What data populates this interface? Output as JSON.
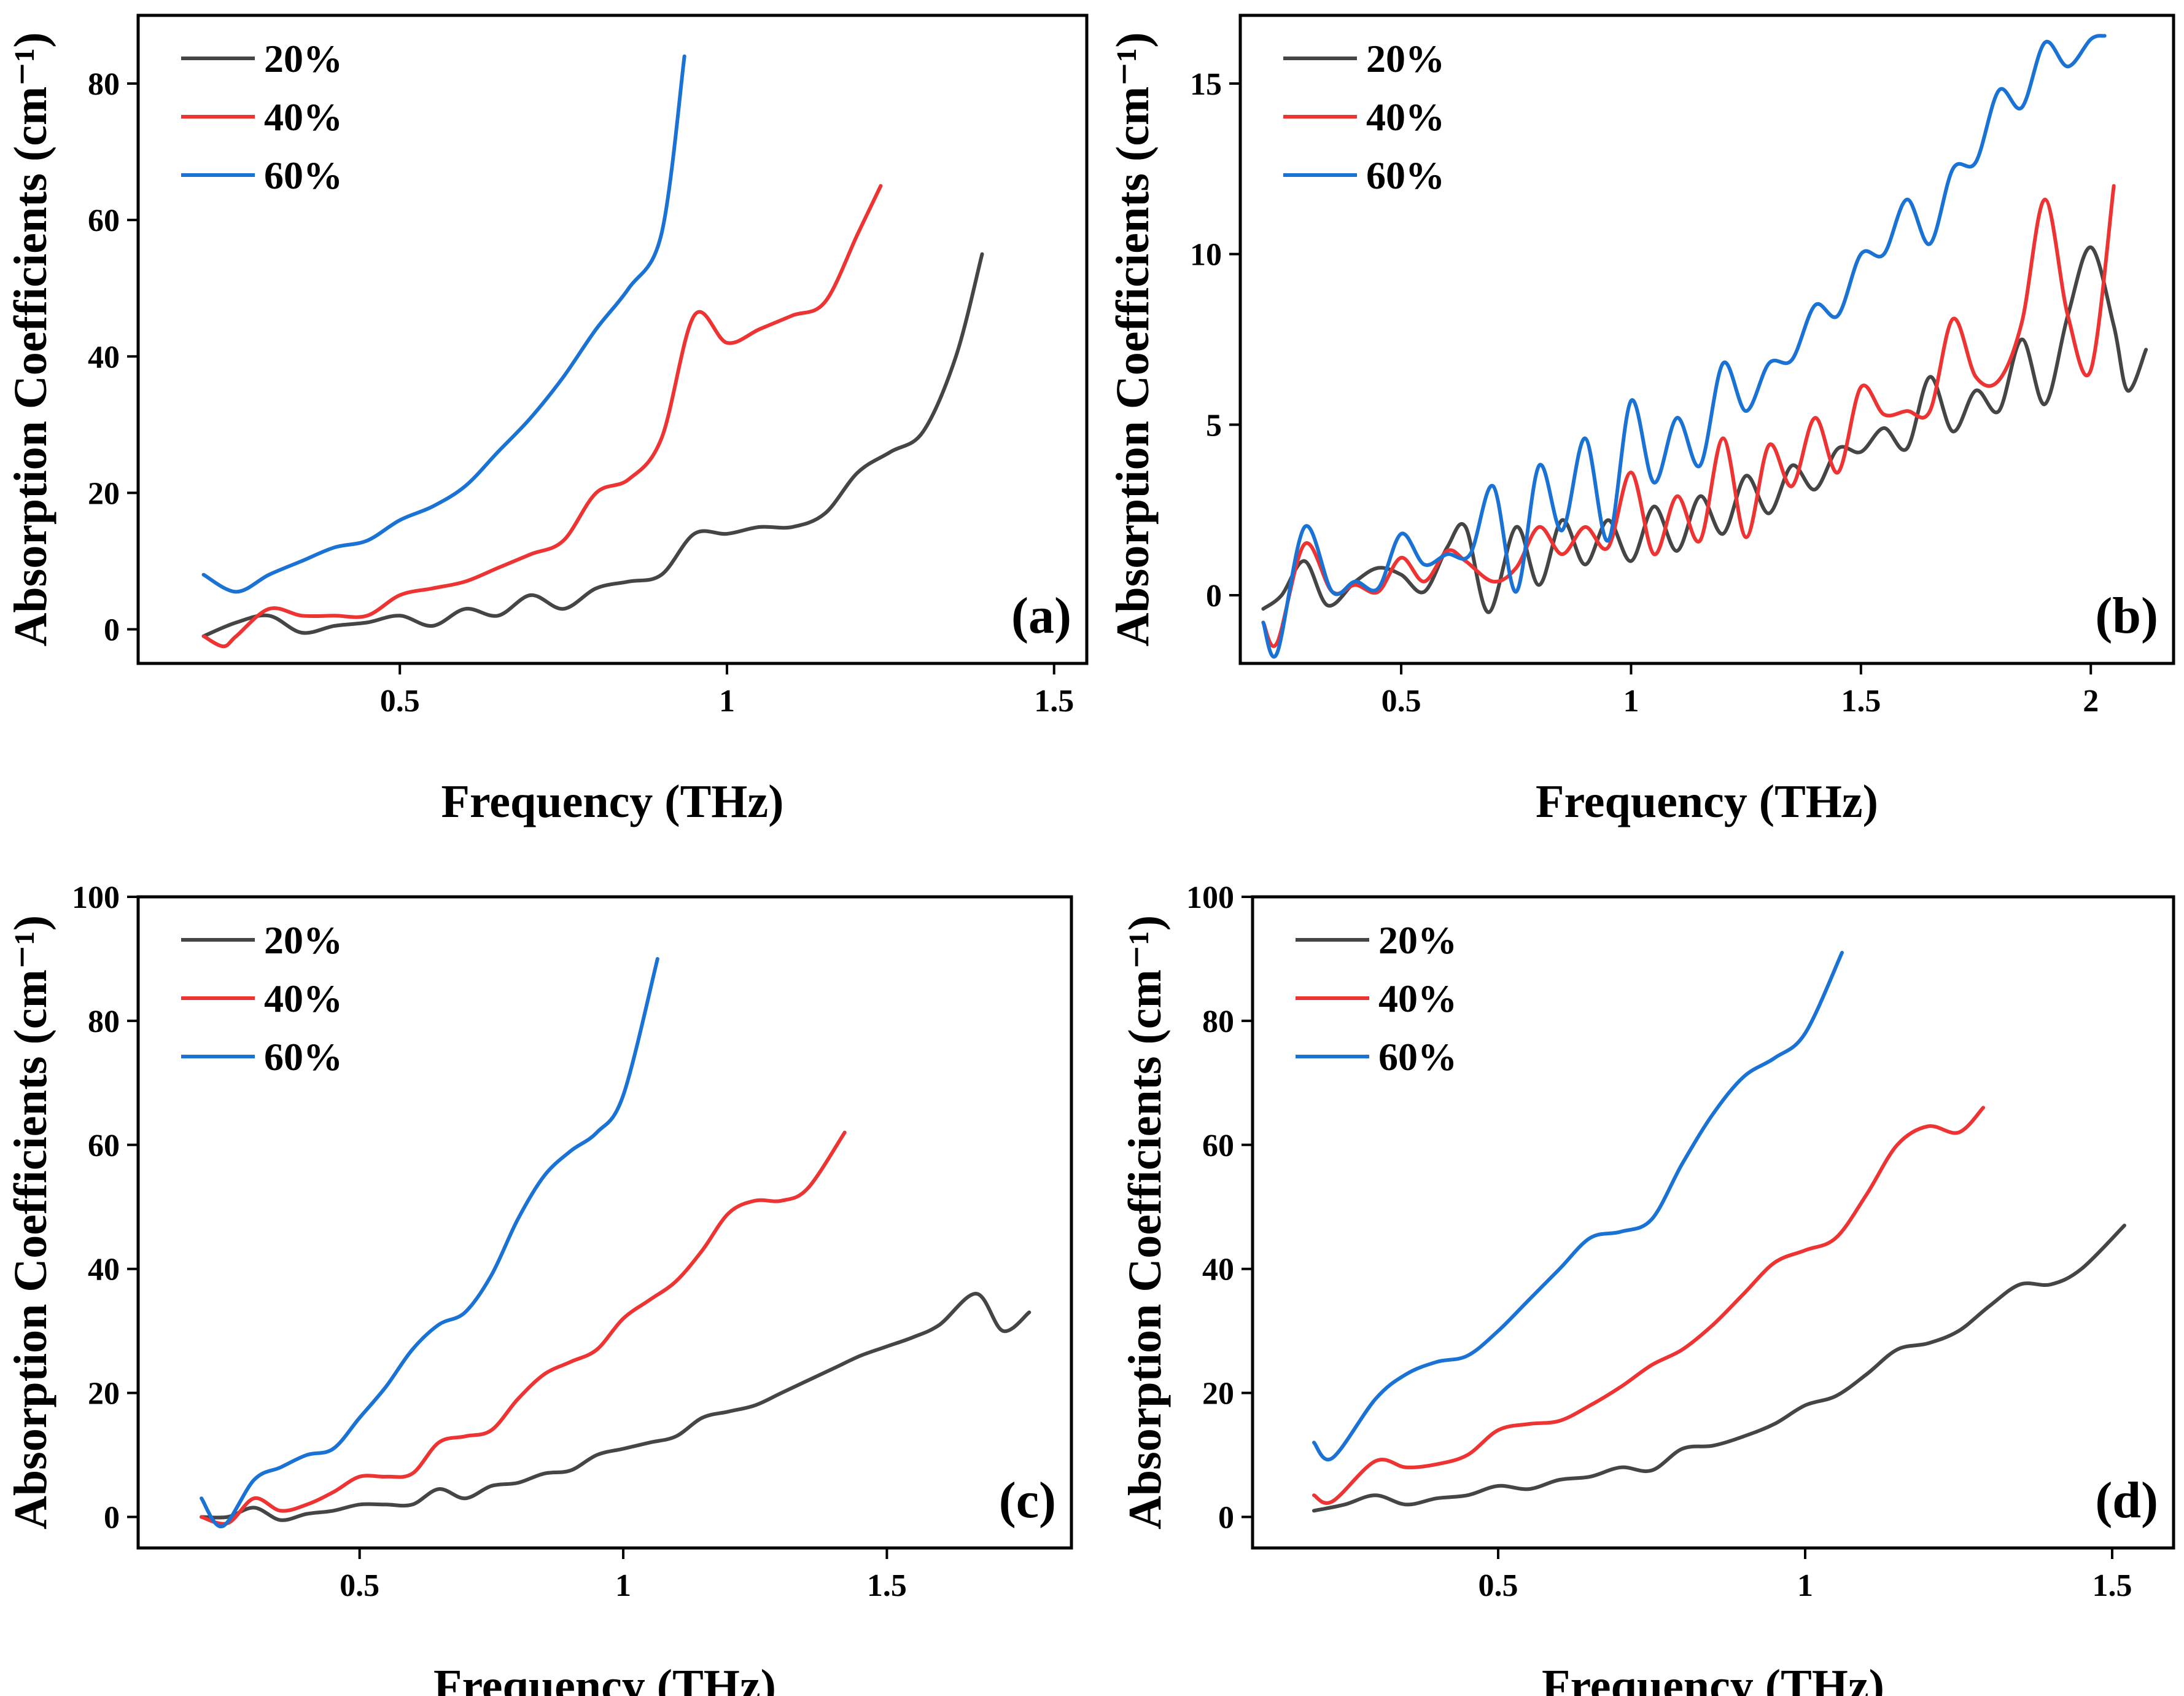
{
  "chart_data": [
    {
      "type": "line",
      "panel_label": "(a)",
      "xlabel": "Frequency (THz)",
      "ylabel": "Absorption Coefficients (cm⁻¹)",
      "xlim": [
        0.1,
        1.55
      ],
      "ylim": [
        -5,
        90
      ],
      "xticks": [
        0.5,
        1,
        1.5
      ],
      "xtick_labels": [
        "0.5",
        "1",
        "1.5"
      ],
      "yticks": [
        0,
        20,
        40,
        60,
        80
      ],
      "ytick_labels": [
        "0",
        "20",
        "40",
        "60",
        "80"
      ],
      "legend_position": "top-left",
      "series": [
        {
          "name": "20%",
          "color": "#454545",
          "x": [
            0.2,
            0.25,
            0.3,
            0.35,
            0.4,
            0.45,
            0.5,
            0.55,
            0.6,
            0.65,
            0.7,
            0.75,
            0.8,
            0.85,
            0.9,
            0.95,
            1.0,
            1.05,
            1.1,
            1.15,
            1.2,
            1.25,
            1.3,
            1.35,
            1.39
          ],
          "y": [
            -1,
            1,
            2,
            -0.5,
            0.5,
            1,
            2,
            0.5,
            3,
            2,
            5,
            3,
            6,
            7,
            8,
            14,
            14,
            15,
            15,
            17,
            23,
            26,
            29,
            40,
            55
          ]
        },
        {
          "name": "40%",
          "color": "#ee3333",
          "x": [
            0.2,
            0.23,
            0.25,
            0.3,
            0.35,
            0.4,
            0.45,
            0.5,
            0.55,
            0.6,
            0.65,
            0.7,
            0.75,
            0.8,
            0.85,
            0.9,
            0.95,
            1.0,
            1.05,
            1.1,
            1.15,
            1.2,
            1.235
          ],
          "y": [
            -1,
            -2.5,
            -1,
            3,
            2,
            2,
            2,
            5,
            6,
            7,
            9,
            11,
            13,
            20,
            22,
            28,
            46,
            42,
            44,
            46,
            48,
            58,
            65
          ]
        },
        {
          "name": "60%",
          "color": "#1a72d4",
          "x": [
            0.2,
            0.25,
            0.3,
            0.35,
            0.4,
            0.45,
            0.5,
            0.55,
            0.6,
            0.65,
            0.7,
            0.75,
            0.8,
            0.85,
            0.9,
            0.935
          ],
          "y": [
            8,
            5.5,
            8,
            10,
            12,
            13,
            16,
            18,
            21,
            26,
            31,
            37,
            44,
            50,
            58,
            84
          ]
        }
      ]
    },
    {
      "type": "line",
      "panel_label": "(b)",
      "xlabel": "Frequency (THz)",
      "ylabel": "Absorption Coefficients (cm⁻¹)",
      "xlim": [
        0.15,
        2.18
      ],
      "ylim": [
        -2,
        17
      ],
      "xticks": [
        0.5,
        1,
        1.5,
        2
      ],
      "xtick_labels": [
        "0.5",
        "1",
        "1.5",
        "2"
      ],
      "yticks": [
        0,
        5,
        10,
        15
      ],
      "ytick_labels": [
        "0",
        "5",
        "10",
        "15"
      ],
      "legend_position": "top-left",
      "series": [
        {
          "name": "20%",
          "color": "#454545",
          "x": [
            0.2,
            0.24,
            0.29,
            0.34,
            0.4,
            0.45,
            0.5,
            0.55,
            0.6,
            0.64,
            0.69,
            0.75,
            0.8,
            0.85,
            0.9,
            0.95,
            1.0,
            1.05,
            1.1,
            1.15,
            1.2,
            1.25,
            1.3,
            1.35,
            1.4,
            1.45,
            1.5,
            1.55,
            1.6,
            1.65,
            1.7,
            1.75,
            1.8,
            1.85,
            1.9,
            1.95,
            2.0,
            2.05,
            2.08,
            2.12
          ],
          "y": [
            -0.4,
            0,
            1,
            -0.3,
            0.4,
            0.8,
            0.6,
            0.1,
            1.4,
            2,
            -0.5,
            2,
            0.3,
            2.2,
            0.9,
            2.2,
            1,
            2.6,
            1.3,
            2.9,
            1.8,
            3.5,
            2.4,
            3.8,
            3.1,
            4.3,
            4.2,
            4.9,
            4.3,
            6.4,
            4.8,
            6,
            5.4,
            7.5,
            5.6,
            8.2,
            10.2,
            7.9,
            6,
            7.2
          ]
        },
        {
          "name": "40%",
          "color": "#ee3333",
          "x": [
            0.2,
            0.23,
            0.29,
            0.35,
            0.4,
            0.45,
            0.5,
            0.55,
            0.6,
            0.64,
            0.7,
            0.75,
            0.8,
            0.85,
            0.9,
            0.95,
            1.0,
            1.05,
            1.1,
            1.15,
            1.2,
            1.25,
            1.3,
            1.35,
            1.4,
            1.45,
            1.5,
            1.55,
            1.6,
            1.65,
            1.7,
            1.75,
            1.8,
            1.85,
            1.9,
            1.95,
            2.0,
            2.05
          ],
          "y": [
            -0.8,
            -1.4,
            1.5,
            0.1,
            0.3,
            0.1,
            1.1,
            0.4,
            1.3,
            1,
            0.4,
            0.8,
            2,
            1.2,
            2,
            1.4,
            3.6,
            1.2,
            2.9,
            1.6,
            4.6,
            1.7,
            4.4,
            3.2,
            5.2,
            3.6,
            6.1,
            5.3,
            5.4,
            5.4,
            8.1,
            6.4,
            6.3,
            8,
            11.6,
            8.2,
            6.6,
            12
          ]
        },
        {
          "name": "60%",
          "color": "#1a72d4",
          "x": [
            0.2,
            0.23,
            0.29,
            0.35,
            0.4,
            0.45,
            0.5,
            0.55,
            0.6,
            0.65,
            0.7,
            0.75,
            0.8,
            0.85,
            0.9,
            0.95,
            1.0,
            1.05,
            1.1,
            1.15,
            1.2,
            1.25,
            1.3,
            1.35,
            1.4,
            1.45,
            1.5,
            1.55,
            1.6,
            1.65,
            1.7,
            1.75,
            1.8,
            1.85,
            1.9,
            1.95,
            2.0,
            2.03
          ],
          "y": [
            -0.8,
            -1.7,
            2,
            0.1,
            0.4,
            0.2,
            1.8,
            0.9,
            1.2,
            1.2,
            3.2,
            0.1,
            3.8,
            1.9,
            4.6,
            1.6,
            5.7,
            3.3,
            5.2,
            3.8,
            6.8,
            5.4,
            6.8,
            6.9,
            8.5,
            8.2,
            10,
            10,
            11.6,
            10.3,
            12.5,
            12.7,
            14.8,
            14.3,
            16.2,
            15.5,
            16.3,
            16.4
          ]
        }
      ]
    },
    {
      "type": "line",
      "panel_label": "(c)",
      "xlabel": "Frequency (THz)",
      "ylabel": "Absorption Coefficients (cm⁻¹)",
      "xlim": [
        0.08,
        1.85
      ],
      "ylim": [
        -5,
        100
      ],
      "xticks": [
        0.5,
        1,
        1.5
      ],
      "xtick_labels": [
        "0.5",
        "1",
        "1.5"
      ],
      "yticks": [
        0,
        20,
        40,
        60,
        80,
        100
      ],
      "ytick_labels": [
        "0",
        "20",
        "40",
        "60",
        "80",
        "100"
      ],
      "legend_position": "top-left",
      "series": [
        {
          "name": "20%",
          "color": "#454545",
          "x": [
            0.2,
            0.25,
            0.3,
            0.35,
            0.4,
            0.45,
            0.5,
            0.55,
            0.6,
            0.65,
            0.7,
            0.75,
            0.8,
            0.85,
            0.9,
            0.95,
            1.0,
            1.05,
            1.1,
            1.15,
            1.2,
            1.25,
            1.3,
            1.35,
            1.4,
            1.45,
            1.5,
            1.55,
            1.6,
            1.67,
            1.72,
            1.77
          ],
          "y": [
            0,
            0,
            1.5,
            -0.5,
            0.5,
            1,
            2,
            2,
            2,
            4.5,
            3,
            5,
            5.5,
            7,
            7.5,
            10,
            11,
            12,
            13,
            16,
            17,
            18,
            20,
            22,
            24,
            26,
            27.5,
            29,
            31,
            36,
            30,
            33
          ]
        },
        {
          "name": "40%",
          "color": "#ee3333",
          "x": [
            0.2,
            0.25,
            0.3,
            0.35,
            0.4,
            0.45,
            0.5,
            0.55,
            0.6,
            0.65,
            0.7,
            0.75,
            0.8,
            0.85,
            0.9,
            0.95,
            1.0,
            1.05,
            1.1,
            1.15,
            1.2,
            1.25,
            1.3,
            1.35,
            1.42
          ],
          "y": [
            0,
            -1,
            3,
            1,
            2,
            4,
            6.5,
            6.5,
            7,
            12,
            13,
            14,
            19,
            23,
            25,
            27,
            32,
            35,
            38,
            43,
            49,
            51,
            51,
            53,
            62
          ]
        },
        {
          "name": "60%",
          "color": "#1a72d4",
          "x": [
            0.2,
            0.24,
            0.3,
            0.35,
            0.4,
            0.45,
            0.5,
            0.55,
            0.6,
            0.65,
            0.7,
            0.75,
            0.8,
            0.85,
            0.9,
            0.95,
            1.0,
            1.065
          ],
          "y": [
            3,
            -1.5,
            6,
            8,
            10,
            11,
            16,
            21,
            27,
            31,
            33,
            39,
            48,
            55,
            59,
            62,
            68,
            90
          ]
        }
      ]
    },
    {
      "type": "line",
      "panel_label": "(d)",
      "xlabel": "Frequency (THz)",
      "ylabel": "Absorption Coefficients (cm⁻¹)",
      "xlim": [
        0.1,
        1.6
      ],
      "ylim": [
        -5,
        100
      ],
      "xticks": [
        0.5,
        1,
        1.5
      ],
      "xtick_labels": [
        "0.5",
        "1",
        "1.5"
      ],
      "yticks": [
        0,
        20,
        40,
        60,
        80,
        100
      ],
      "ytick_labels": [
        "0",
        "20",
        "40",
        "60",
        "80",
        "100"
      ],
      "legend_position": "top-left",
      "series": [
        {
          "name": "20%",
          "color": "#454545",
          "x": [
            0.2,
            0.25,
            0.3,
            0.35,
            0.4,
            0.45,
            0.5,
            0.55,
            0.6,
            0.65,
            0.7,
            0.75,
            0.8,
            0.85,
            0.9,
            0.95,
            1.0,
            1.05,
            1.1,
            1.15,
            1.2,
            1.25,
            1.3,
            1.35,
            1.4,
            1.45,
            1.52
          ],
          "y": [
            1,
            2,
            3.5,
            2,
            3,
            3.5,
            5,
            4.5,
            6,
            6.5,
            8,
            7.5,
            11,
            11.5,
            13,
            15,
            18,
            19.5,
            23,
            27,
            28,
            30,
            34,
            37.5,
            37.5,
            40,
            47
          ]
        },
        {
          "name": "40%",
          "color": "#ee3333",
          "x": [
            0.2,
            0.23,
            0.3,
            0.35,
            0.4,
            0.45,
            0.5,
            0.55,
            0.6,
            0.65,
            0.7,
            0.75,
            0.8,
            0.85,
            0.9,
            0.95,
            1.0,
            1.05,
            1.1,
            1.15,
            1.2,
            1.25,
            1.29
          ],
          "y": [
            3.5,
            2.5,
            9,
            8,
            8.5,
            10,
            14,
            15,
            15.5,
            18,
            21,
            24.5,
            27,
            31,
            36,
            41,
            43,
            45,
            52,
            60,
            63,
            62,
            66
          ]
        },
        {
          "name": "60%",
          "color": "#1a72d4",
          "x": [
            0.2,
            0.23,
            0.3,
            0.35,
            0.4,
            0.45,
            0.5,
            0.55,
            0.6,
            0.65,
            0.7,
            0.75,
            0.8,
            0.85,
            0.9,
            0.95,
            1.0,
            1.06
          ],
          "y": [
            12,
            9.5,
            19,
            23,
            25,
            26,
            30,
            35,
            40,
            45,
            46,
            48,
            57,
            65,
            71,
            74,
            78,
            91
          ]
        }
      ]
    }
  ]
}
